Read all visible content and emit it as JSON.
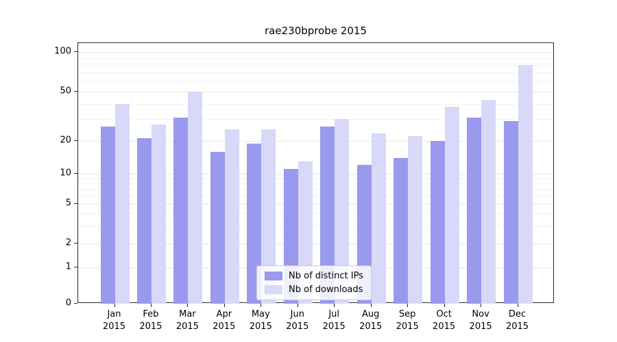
{
  "title": "rae230bprobe 2015",
  "chart_data": {
    "type": "bar",
    "title": "rae230bprobe 2015",
    "categories": [
      {
        "month": "Jan",
        "year": "2015"
      },
      {
        "month": "Feb",
        "year": "2015"
      },
      {
        "month": "Mar",
        "year": "2015"
      },
      {
        "month": "Apr",
        "year": "2015"
      },
      {
        "month": "May",
        "year": "2015"
      },
      {
        "month": "Jun",
        "year": "2015"
      },
      {
        "month": "Jul",
        "year": "2015"
      },
      {
        "month": "Aug",
        "year": "2015"
      },
      {
        "month": "Sep",
        "year": "2015"
      },
      {
        "month": "Oct",
        "year": "2015"
      },
      {
        "month": "Nov",
        "year": "2015"
      },
      {
        "month": "Dec",
        "year": "2015"
      }
    ],
    "series": [
      {
        "name": "Nb of distinct IPs",
        "color": "#9999ee",
        "values": [
          26,
          21,
          31,
          16,
          19,
          11,
          26,
          12,
          14,
          20,
          31,
          29
        ]
      },
      {
        "name": "Nb of downloads",
        "color": "#d8d8f8",
        "values": [
          40,
          27,
          50,
          25,
          25,
          13,
          30,
          23,
          22,
          38,
          43,
          80
        ]
      }
    ],
    "y_axis": {
      "scale": "symlog",
      "ticks": [
        0,
        1,
        2,
        5,
        10,
        20,
        50,
        100
      ],
      "minor_ticks": [
        3,
        4,
        6,
        7,
        8,
        9,
        30,
        40,
        60,
        70,
        80,
        90
      ],
      "range": [
        0,
        110
      ]
    },
    "grid": true,
    "legend_position": "lower center"
  }
}
